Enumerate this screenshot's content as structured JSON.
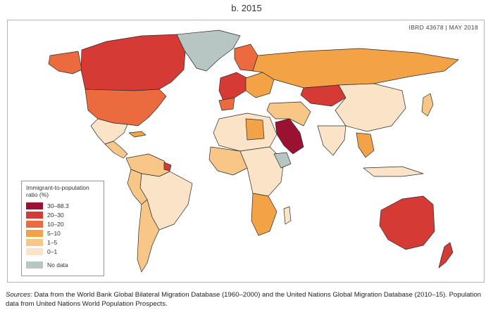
{
  "title": "b. 2015",
  "map_id": "IBRD 43678  |  MAY 2018",
  "legend": {
    "title": "Immigrant-to-population ratio (%)",
    "items": [
      {
        "label": "30–88.3",
        "color": "#9b1132"
      },
      {
        "label": "20–30",
        "color": "#d63a35"
      },
      {
        "label": "10–20",
        "color": "#ec6b3e"
      },
      {
        "label": "5–10",
        "color": "#f3a246"
      },
      {
        "label": "1–5",
        "color": "#f8c787"
      },
      {
        "label": "0–1",
        "color": "#fbe3c8"
      }
    ],
    "no_data": {
      "label": "No data",
      "color": "#b7c5c3"
    }
  },
  "sources": {
    "label": "Sources:",
    "text": "Data from the World Bank Global Bilateral Migration Database (1960–2000) and the United Nations Global Migration Database (2010–15). Population data from United Nations World Population Prospects."
  }
}
